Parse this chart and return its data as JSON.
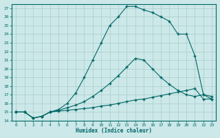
{
  "xlabel": "Humidex (Indice chaleur)",
  "background_color": "#cce8e8",
  "grid_color": "#aacccc",
  "line_color": "#006666",
  "xlim": [
    -0.5,
    23.5
  ],
  "ylim": [
    14,
    27.5
  ],
  "xticks": [
    0,
    1,
    2,
    3,
    4,
    5,
    6,
    7,
    8,
    9,
    10,
    11,
    12,
    13,
    14,
    15,
    16,
    17,
    18,
    19,
    20,
    21,
    22,
    23
  ],
  "yticks": [
    14,
    15,
    16,
    17,
    18,
    19,
    20,
    21,
    22,
    23,
    24,
    25,
    26,
    27
  ],
  "curve1_x": [
    0,
    1,
    2,
    3,
    4,
    5,
    6,
    7,
    8,
    9,
    10,
    11,
    12,
    13,
    14,
    15,
    16,
    17,
    18,
    19,
    20,
    21,
    22,
    23
  ],
  "curve1_y": [
    15,
    15,
    14.3,
    14.5,
    15.0,
    15.1,
    15.2,
    15.3,
    15.4,
    15.5,
    15.7,
    15.8,
    16.0,
    16.2,
    16.4,
    16.5,
    16.7,
    16.9,
    17.1,
    17.3,
    17.5,
    17.7,
    16.5,
    16.5
  ],
  "curve2_x": [
    0,
    1,
    2,
    3,
    4,
    5,
    6,
    7,
    8,
    9,
    10,
    11,
    12,
    13,
    14,
    15,
    16,
    17,
    18,
    19,
    20,
    21,
    22,
    23
  ],
  "curve2_y": [
    15,
    15,
    14.3,
    14.5,
    15.0,
    15.2,
    15.5,
    15.8,
    16.2,
    16.8,
    17.5,
    18.3,
    19.2,
    20.2,
    21.2,
    21.0,
    20.0,
    19.0,
    18.2,
    17.5,
    17.0,
    16.8,
    17.0,
    16.8
  ],
  "curve3_x": [
    0,
    1,
    2,
    3,
    4,
    5,
    6,
    7,
    8,
    9,
    10,
    11,
    12,
    13,
    14,
    15,
    16,
    17,
    18,
    19,
    20,
    21,
    22,
    23
  ],
  "curve3_y": [
    15,
    15,
    14.3,
    14.5,
    15.0,
    15.3,
    16.0,
    17.2,
    19.0,
    21.0,
    23.0,
    25.0,
    26.0,
    27.2,
    27.2,
    26.8,
    26.5,
    26.0,
    25.5,
    24.0,
    24.0,
    21.5,
    17.0,
    16.5
  ]
}
